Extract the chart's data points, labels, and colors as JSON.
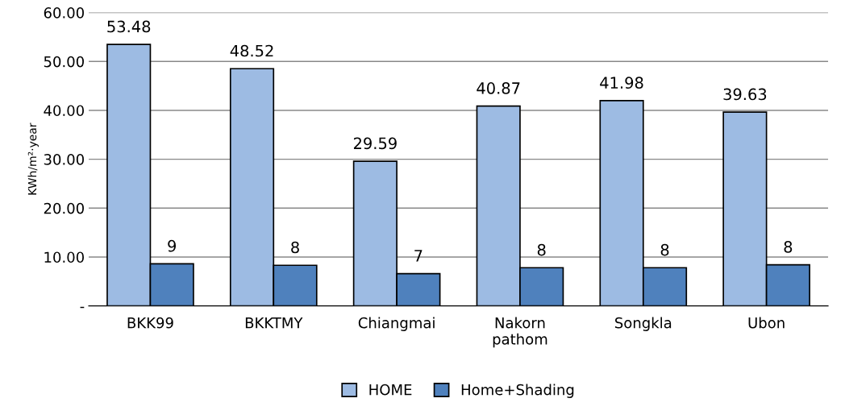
{
  "chart_data": {
    "type": "bar",
    "ylabel": "KWh/m²·year",
    "categories": [
      "BKK99",
      "BKKTMY",
      "Chiangmai",
      "Nakorn\npathom",
      "Songkla",
      "Ubon"
    ],
    "series": [
      {
        "name": "HOME",
        "color": "#9dbbe3",
        "values": [
          53.48,
          48.52,
          29.59,
          40.87,
          41.98,
          39.63
        ],
        "value_labels": [
          "53.48",
          "48.52",
          "29.59",
          "40.87",
          "41.98",
          "39.63"
        ]
      },
      {
        "name": "Home+Shading",
        "color": "#4f81bd",
        "values": [
          8.6,
          8.3,
          6.6,
          7.8,
          7.8,
          8.4
        ],
        "value_labels": [
          "9",
          "8",
          "7",
          "8",
          "8",
          "8"
        ]
      }
    ],
    "ylim": [
      0,
      60
    ],
    "yticks": [
      {
        "value": 0,
        "label": "-"
      },
      {
        "value": 10,
        "label": "10.00"
      },
      {
        "value": 20,
        "label": "20.00"
      },
      {
        "value": 30,
        "label": "30.00"
      },
      {
        "value": 40,
        "label": "40.00"
      },
      {
        "value": 50,
        "label": "50.00"
      },
      {
        "value": 60,
        "label": "60.00"
      }
    ],
    "grid": "y",
    "legend": "bottom"
  }
}
